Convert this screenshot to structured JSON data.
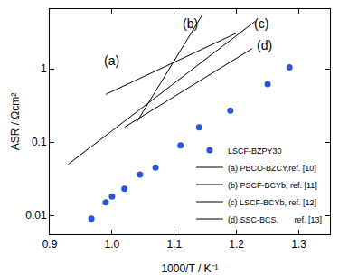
{
  "chart_data": {
    "type": "scatter",
    "x_label": "1000/T / K⁻¹",
    "y_label": "ASR / Ωcm²",
    "log": "y",
    "legend": "lower right",
    "xlim": [
      0.9,
      1.35
    ],
    "ylim": [
      0.0055,
      6.6
    ],
    "xticks": [
      0.9,
      {
        "value": 1.0,
        "label": "1.0"
      },
      1.1,
      1.2,
      1.3
    ],
    "yticks": [
      0.01,
      0.1,
      1
    ],
    "series": [
      {
        "name": "LSCF-BZPY30",
        "type": "scatter",
        "marker": "circle",
        "color": "#2a56d6",
        "x": [
          0.967,
          0.99,
          1.0,
          1.02,
          1.045,
          1.07,
          1.11,
          1.14,
          1.19,
          1.25,
          1.285
        ],
        "values": [
          0.009,
          0.015,
          0.018,
          0.023,
          0.036,
          0.045,
          0.09,
          0.16,
          0.27,
          0.62,
          1.05
        ]
      },
      {
        "name": "(a) PBCO-BZCY,ref. [10]",
        "type": "line",
        "line_style": "solid",
        "color": "#000000",
        "x": [
          0.99,
          1.2
        ],
        "values": [
          0.45,
          3.1
        ]
      },
      {
        "name": "(b) PSCF-BCYb, ref. [11]",
        "type": "line",
        "line_style": "solid",
        "color": "#000000",
        "x": [
          1.04,
          1.145
        ],
        "values": [
          0.19,
          5.5
        ]
      },
      {
        "name": "(c) LSCF-BCYb, ref. [12]",
        "type": "line",
        "line_style": "solid",
        "color": "#000000",
        "x": [
          0.93,
          1.23
        ],
        "values": [
          0.05,
          4.5
        ]
      },
      {
        "name": "(d) SSC-BCS,       ref. [13]",
        "type": "line",
        "line_style": "solid",
        "color": "#000000",
        "x": [
          1.02,
          1.225
        ],
        "values": [
          0.16,
          1.9
        ]
      }
    ],
    "annotations": [
      {
        "text": "(a)",
        "x": 1.0,
        "y": 1.3
      },
      {
        "text": "(b)",
        "x": 1.125,
        "y": 4.2
      },
      {
        "text": "(c)",
        "x": 1.24,
        "y": 4.2
      },
      {
        "text": "(d)",
        "x": 1.245,
        "y": 2.1
      }
    ]
  }
}
